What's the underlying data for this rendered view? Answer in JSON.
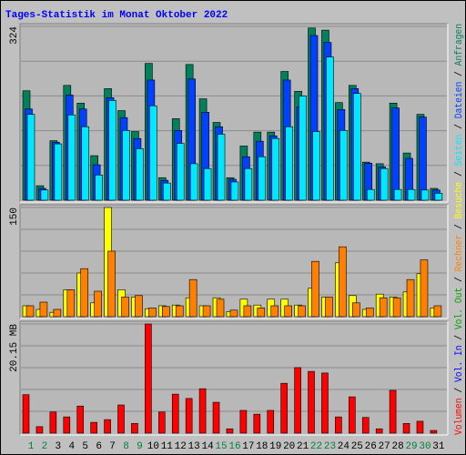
{
  "title": "Tages-Statistik im Monat Oktober 2022",
  "title_color": "#0000FF",
  "legend_separator": " / ",
  "legend_extra": [
    {
      "name": "Vol. In",
      "color": "#0000FF"
    },
    {
      "name": "Vol. Out",
      "color": "#00A000"
    }
  ],
  "chart_data": [
    {
      "type": "bar",
      "ylim": [
        0,
        324
      ],
      "yticks": [
        324
      ],
      "series": [
        {
          "name": "Anfragen",
          "color": "#00805C",
          "values": [
            204,
            27,
            111,
            214,
            181,
            83,
            208,
            167,
            128,
            255,
            42,
            152,
            253,
            189,
            145,
            42,
            101,
            127,
            127,
            240,
            203,
            321,
            317,
            182,
            214,
            71,
            68,
            181,
            88,
            160,
            22
          ]
        },
        {
          "name": "Dateien",
          "color": "#0040FF",
          "values": [
            170,
            22,
            108,
            196,
            170,
            66,
            191,
            154,
            115,
            224,
            37,
            130,
            226,
            164,
            137,
            39,
            81,
            110,
            120,
            224,
            174,
            307,
            294,
            169,
            208,
            69,
            62,
            172,
            78,
            155,
            19
          ]
        },
        {
          "name": "Seiten",
          "color": "#00E8FF",
          "values": [
            160,
            19,
            105,
            159,
            137,
            47,
            186,
            130,
            96,
            176,
            32,
            106,
            68,
            59,
            123,
            34,
            59,
            81,
            115,
            137,
            194,
            128,
            267,
            130,
            199,
            20,
            59,
            20,
            20,
            19,
            13
          ]
        }
      ]
    },
    {
      "type": "bar",
      "ylim": [
        0,
        150
      ],
      "yticks": [
        150
      ],
      "series": [
        {
          "name": "Besuche",
          "color": "#FFFF00",
          "values": [
            15,
            10,
            6,
            37,
            60,
            19,
            150,
            37,
            27,
            11,
            15,
            16,
            26,
            15,
            26,
            7,
            24,
            16,
            24,
            24,
            16,
            39,
            27,
            74,
            29,
            10,
            31,
            27,
            34,
            59,
            12
          ]
        },
        {
          "name": "Rechner",
          "color": "#FF8000",
          "values": [
            15,
            20,
            10,
            37,
            66,
            35,
            90,
            27,
            29,
            12,
            14,
            15,
            51,
            15,
            24,
            9,
            15,
            12,
            15,
            15,
            15,
            76,
            27,
            96,
            19,
            12,
            26,
            26,
            51,
            78,
            15
          ]
        }
      ]
    },
    {
      "type": "bar",
      "ylim": [
        0,
        20.15
      ],
      "yticks": [
        {
          "value": 20.15,
          "label": "20.15 MB"
        }
      ],
      "categories": [
        "1",
        "2",
        "3",
        "4",
        "5",
        "6",
        "7",
        "8",
        "9",
        "10",
        "11",
        "12",
        "13",
        "14",
        "15",
        "16",
        "17",
        "18",
        "19",
        "20",
        "21",
        "22",
        "23",
        "24",
        "25",
        "26",
        "27",
        "28",
        "29",
        "30",
        "31"
      ],
      "category_label_colors": [
        "#008040",
        "#008040",
        "#000000",
        "#000000",
        "#000000",
        "#000000",
        "#000000",
        "#008040",
        "#008040",
        "#000000",
        "#000000",
        "#000000",
        "#000000",
        "#000000",
        "#008040",
        "#008040",
        "#000000",
        "#000000",
        "#000000",
        "#000000",
        "#000000",
        "#008040",
        "#008040",
        "#000000",
        "#000000",
        "#000000",
        "#000000",
        "#000000",
        "#008040",
        "#008040",
        "#000000"
      ],
      "series": [
        {
          "name": "Volumen",
          "color": "#FF0000",
          "values": [
            7.1,
            1.2,
            3.9,
            3.0,
            5.0,
            2.0,
            2.5,
            5.2,
            1.8,
            20.15,
            3.9,
            7.2,
            6.4,
            8.2,
            5.7,
            0.8,
            4.2,
            3.5,
            4.2,
            9.2,
            12.1,
            11.4,
            11.1,
            3.0,
            6.7,
            2.9,
            0.8,
            7.9,
            1.8,
            2.2,
            0.5
          ]
        }
      ]
    }
  ]
}
